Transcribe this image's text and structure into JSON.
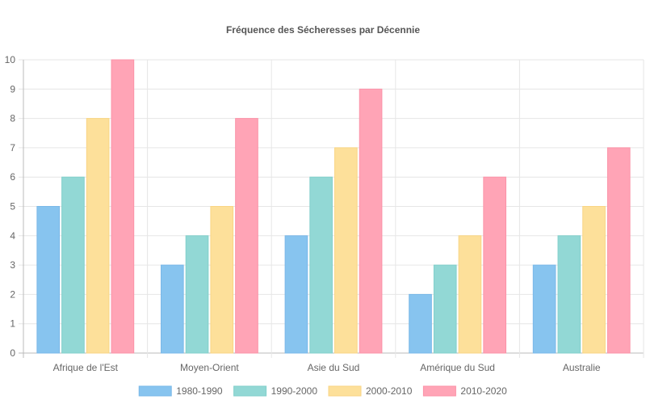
{
  "chart_data": {
    "type": "bar",
    "title": "Fréquence des Sécheresses par Décennie",
    "categories": [
      "Afrique de l'Est",
      "Moyen-Orient",
      "Asie du Sud",
      "Amérique du Sud",
      "Australie"
    ],
    "series": [
      {
        "name": "1980-1990",
        "values": [
          5,
          3,
          4,
          2,
          3
        ],
        "color": "#87c4ef",
        "border": "#7ab8e8"
      },
      {
        "name": "1990-2000",
        "values": [
          6,
          4,
          6,
          3,
          4
        ],
        "color": "#92d8d5",
        "border": "#82cfcb"
      },
      {
        "name": "2000-2010",
        "values": [
          8,
          5,
          7,
          4,
          5
        ],
        "color": "#fde09a",
        "border": "#f9d584"
      },
      {
        "name": "2010-2020",
        "values": [
          10,
          8,
          9,
          6,
          7
        ],
        "color": "#ffa4b6",
        "border": "#fb93a8"
      }
    ],
    "ylim": [
      0,
      10
    ],
    "yticks": [
      0,
      1,
      2,
      3,
      4,
      5,
      6,
      7,
      8,
      9,
      10
    ],
    "xlabel": "",
    "ylabel": "",
    "grid": true,
    "legend_position": "bottom"
  }
}
